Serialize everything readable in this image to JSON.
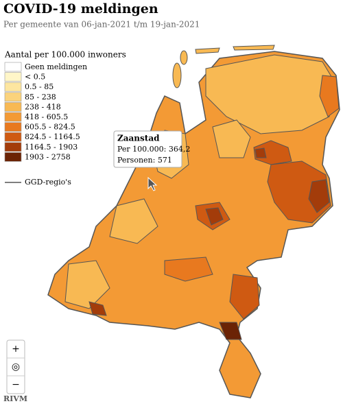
{
  "header": {
    "title": "COVID-19 meldingen",
    "subtitle": "Per gemeente van 06-jan-2021 t/m 19-jan-2021"
  },
  "legend": {
    "title": "Aantal per 100.000 inwoners",
    "items": [
      {
        "label": "Geen meldingen",
        "color": "#ffffff"
      },
      {
        "label": "< 0.5",
        "color": "#fff6c8"
      },
      {
        "label": "0.5 - 85",
        "color": "#fde6a0"
      },
      {
        "label": "85 - 238",
        "color": "#fbd37c"
      },
      {
        "label": "238 - 418",
        "color": "#f8b953"
      },
      {
        "label": "418 - 605.5",
        "color": "#f39a35"
      },
      {
        "label": "605.5 - 824.5",
        "color": "#e8791f"
      },
      {
        "label": "824.5 - 1164.5",
        "color": "#cf5a12"
      },
      {
        "label": "1164.5 - 1903",
        "color": "#a33c0a"
      },
      {
        "label": "1903 - 2758",
        "color": "#6b2305"
      }
    ],
    "region_line": "GGD-regio's"
  },
  "tooltip": {
    "name": "Zaanstad",
    "rate": "Per 100.000: 364,2",
    "persons": "Personen: 571"
  },
  "controls": {
    "zoom_in": "+",
    "locate": "◎",
    "zoom_out": "−"
  },
  "footer": {
    "source": "RIVM"
  }
}
